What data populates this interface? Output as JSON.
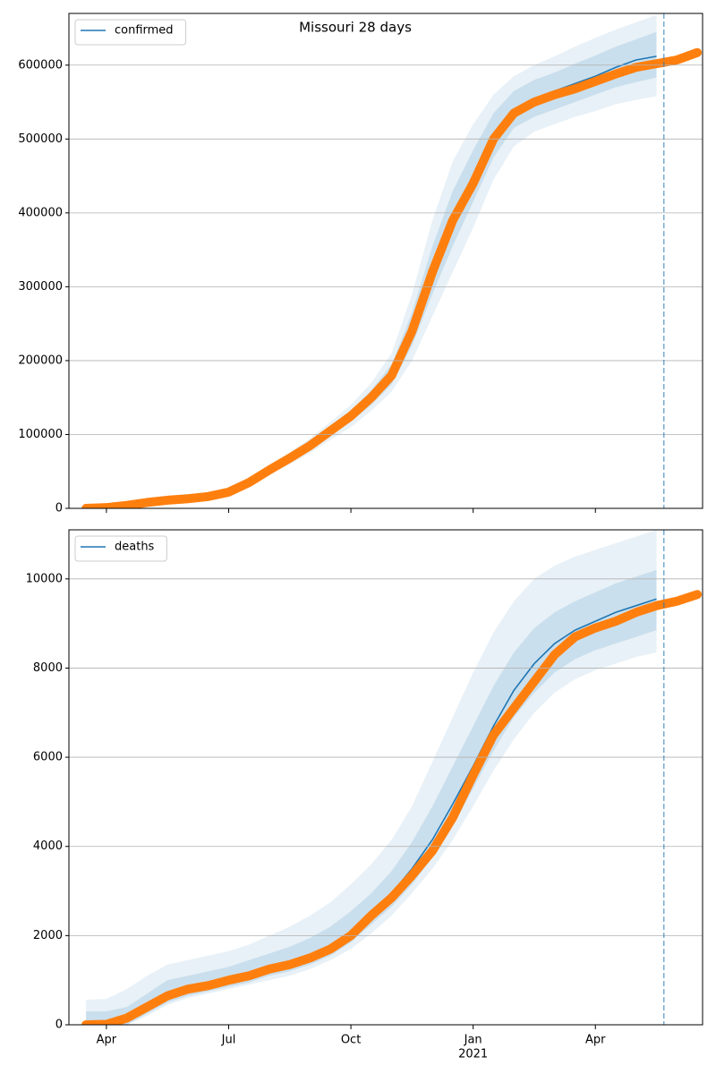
{
  "chart_data": [
    {
      "type": "line",
      "title": "Missouri 28 days",
      "grid": "y",
      "legend": "upper left",
      "show_xtick_labels": false,
      "xlim": [
        0.08,
        15.63
      ],
      "xticks": [
        {
          "value": 1,
          "label": "Apr"
        },
        {
          "value": 4,
          "label": "Jul"
        },
        {
          "value": 7,
          "label": "Oct"
        },
        {
          "value": 10,
          "label": "Jan"
        },
        {
          "value": 13,
          "label": "Apr"
        }
      ],
      "ylim": [
        0,
        670000
      ],
      "yticks": [
        0,
        100000,
        200000,
        300000,
        400000,
        500000,
        600000
      ],
      "vline_x": 14.68,
      "vline_color": "#1f77b4",
      "x": [
        0.5,
        1,
        1.5,
        2,
        2.5,
        3,
        3.5,
        4,
        4.5,
        5,
        5.5,
        6,
        6.5,
        7,
        7.5,
        8,
        8.5,
        9,
        9.5,
        10,
        10.5,
        11,
        11.5,
        12,
        12.5,
        13,
        13.5,
        14,
        14.5
      ],
      "bands": [
        {
          "color": "#1f77b4",
          "opacity": 0.1,
          "lower": [
            0,
            0,
            2000,
            6000,
            9000,
            11000,
            13000,
            18000,
            30000,
            46000,
            60000,
            75000,
            93000,
            110000,
            132000,
            158000,
            200000,
            260000,
            320000,
            380000,
            445000,
            490000,
            510000,
            520000,
            530000,
            538000,
            547000,
            553000,
            558000
          ],
          "upper": [
            2000,
            3000,
            6000,
            10000,
            13000,
            16000,
            19000,
            26000,
            40000,
            58000,
            76000,
            95000,
            117000,
            140000,
            170000,
            210000,
            290000,
            390000,
            470000,
            520000,
            560000,
            585000,
            600000,
            612000,
            625000,
            637000,
            648000,
            658000,
            668000
          ]
        },
        {
          "color": "#1f77b4",
          "opacity": 0.15,
          "lower": [
            0,
            500,
            3000,
            7000,
            10000,
            12000,
            14500,
            20000,
            32500,
            49000,
            64000,
            80000,
            99000,
            117500,
            140000,
            168000,
            220000,
            290000,
            355000,
            415000,
            475000,
            515000,
            530000,
            540000,
            550000,
            560000,
            570000,
            577000,
            583000
          ],
          "upper": [
            1000,
            2000,
            5000,
            9000,
            12000,
            14500,
            17500,
            24000,
            37500,
            55000,
            72000,
            90000,
            111000,
            132500,
            160000,
            195000,
            265000,
            355000,
            430000,
            485000,
            535000,
            565000,
            580000,
            590000,
            602000,
            613000,
            625000,
            635000,
            645000
          ]
        }
      ],
      "series": [
        {
          "name": "confirmed",
          "color": "#1f77b4",
          "values": [
            0,
            1000,
            4000,
            8000,
            11000,
            13000,
            16000,
            22000,
            35000,
            52000,
            68000,
            85000,
            105000,
            125000,
            150000,
            180000,
            240000,
            320000,
            390000,
            445000,
            505000,
            540000,
            555000,
            565000,
            575000,
            585000,
            597000,
            607000,
            612000
          ]
        },
        {
          "color": "#ff7f0e",
          "style": "dots",
          "x": [
            0.5,
            1,
            1.5,
            2,
            2.5,
            3,
            3.5,
            4,
            4.5,
            5,
            5.5,
            6,
            6.5,
            7,
            7.5,
            8,
            8.5,
            9,
            9.5,
            10,
            10.5,
            11,
            11.5,
            12,
            12.5,
            13,
            13.5,
            14,
            14.5,
            15,
            15.5
          ],
          "values": [
            0,
            1000,
            4000,
            8000,
            11000,
            13000,
            16000,
            22000,
            35000,
            52000,
            68000,
            85000,
            105000,
            125000,
            150000,
            180000,
            240000,
            320000,
            390000,
            440000,
            500000,
            535000,
            550000,
            560000,
            568000,
            578000,
            588000,
            597000,
            602000,
            607000,
            617000
          ]
        }
      ]
    },
    {
      "type": "line",
      "grid": "y",
      "legend": "upper left",
      "show_xtick_labels": true,
      "xlim": [
        0.08,
        15.63
      ],
      "xticks": [
        {
          "value": 1,
          "label": "Apr"
        },
        {
          "value": 4,
          "label": "Jul"
        },
        {
          "value": 7,
          "label": "Oct"
        },
        {
          "value": 10,
          "label": "Jan"
        },
        {
          "value": 13,
          "label": "Apr"
        }
      ],
      "x_sublabel": {
        "value": 10,
        "label": "2021"
      },
      "ylim": [
        0,
        11100
      ],
      "yticks": [
        0,
        2000,
        4000,
        6000,
        8000,
        10000
      ],
      "vline_x": 14.68,
      "vline_color": "#1f77b4",
      "x": [
        0.5,
        1,
        1.5,
        2,
        2.5,
        3,
        3.5,
        4,
        4.5,
        5,
        5.5,
        6,
        6.5,
        7,
        7.5,
        8,
        8.5,
        9,
        9.5,
        10,
        10.5,
        11,
        11.5,
        12,
        12.5,
        13,
        13.5,
        14,
        14.5
      ],
      "bands": [
        {
          "color": "#1f77b4",
          "opacity": 0.1,
          "lower": [
            0,
            0,
            0,
            200,
            450,
            600,
            700,
            800,
            900,
            1000,
            1100,
            1250,
            1450,
            1700,
            2050,
            2450,
            2950,
            3500,
            4150,
            4900,
            5700,
            6400,
            7000,
            7450,
            7750,
            7950,
            8100,
            8250,
            8350
          ],
          "upper": [
            560,
            580,
            800,
            1100,
            1350,
            1450,
            1550,
            1650,
            1800,
            2000,
            2200,
            2450,
            2750,
            3150,
            3600,
            4150,
            4900,
            5900,
            6900,
            7900,
            8800,
            9500,
            10000,
            10300,
            10500,
            10650,
            10800,
            10950,
            11100
          ]
        },
        {
          "color": "#1f77b4",
          "opacity": 0.15,
          "lower": [
            0,
            0,
            0,
            250,
            500,
            650,
            750,
            850,
            950,
            1100,
            1200,
            1350,
            1550,
            1850,
            2250,
            2650,
            3150,
            3750,
            4450,
            5300,
            6150,
            6900,
            7450,
            7900,
            8200,
            8400,
            8550,
            8700,
            8850
          ],
          "upper": [
            300,
            300,
            400,
            700,
            1000,
            1100,
            1200,
            1300,
            1450,
            1600,
            1750,
            1950,
            2200,
            2550,
            2950,
            3450,
            4100,
            4900,
            5800,
            6700,
            7600,
            8350,
            8900,
            9250,
            9500,
            9700,
            9900,
            10050,
            10200
          ]
        }
      ],
      "series": [
        {
          "name": "deaths",
          "color": "#1f77b4",
          "values": [
            0,
            10,
            150,
            400,
            650,
            800,
            880,
            1000,
            1100,
            1250,
            1380,
            1550,
            1780,
            2100,
            2500,
            2950,
            3500,
            4150,
            4950,
            5800,
            6700,
            7500,
            8100,
            8550,
            8850,
            9050,
            9250,
            9400,
            9550
          ]
        },
        {
          "color": "#ff7f0e",
          "style": "dots",
          "x": [
            0.5,
            1,
            1.5,
            2,
            2.5,
            3,
            3.5,
            4,
            4.5,
            5,
            5.5,
            6,
            6.5,
            7,
            7.5,
            8,
            8.5,
            9,
            9.5,
            10,
            10.5,
            11,
            11.5,
            12,
            12.5,
            13,
            13.5,
            14,
            14.5,
            15,
            15.5
          ],
          "values": [
            0,
            10,
            150,
            400,
            650,
            800,
            880,
            1000,
            1100,
            1250,
            1350,
            1500,
            1700,
            2000,
            2450,
            2850,
            3350,
            3900,
            4650,
            5600,
            6500,
            7100,
            7700,
            8300,
            8700,
            8900,
            9050,
            9250,
            9400,
            9500,
            9650
          ]
        }
      ]
    }
  ]
}
